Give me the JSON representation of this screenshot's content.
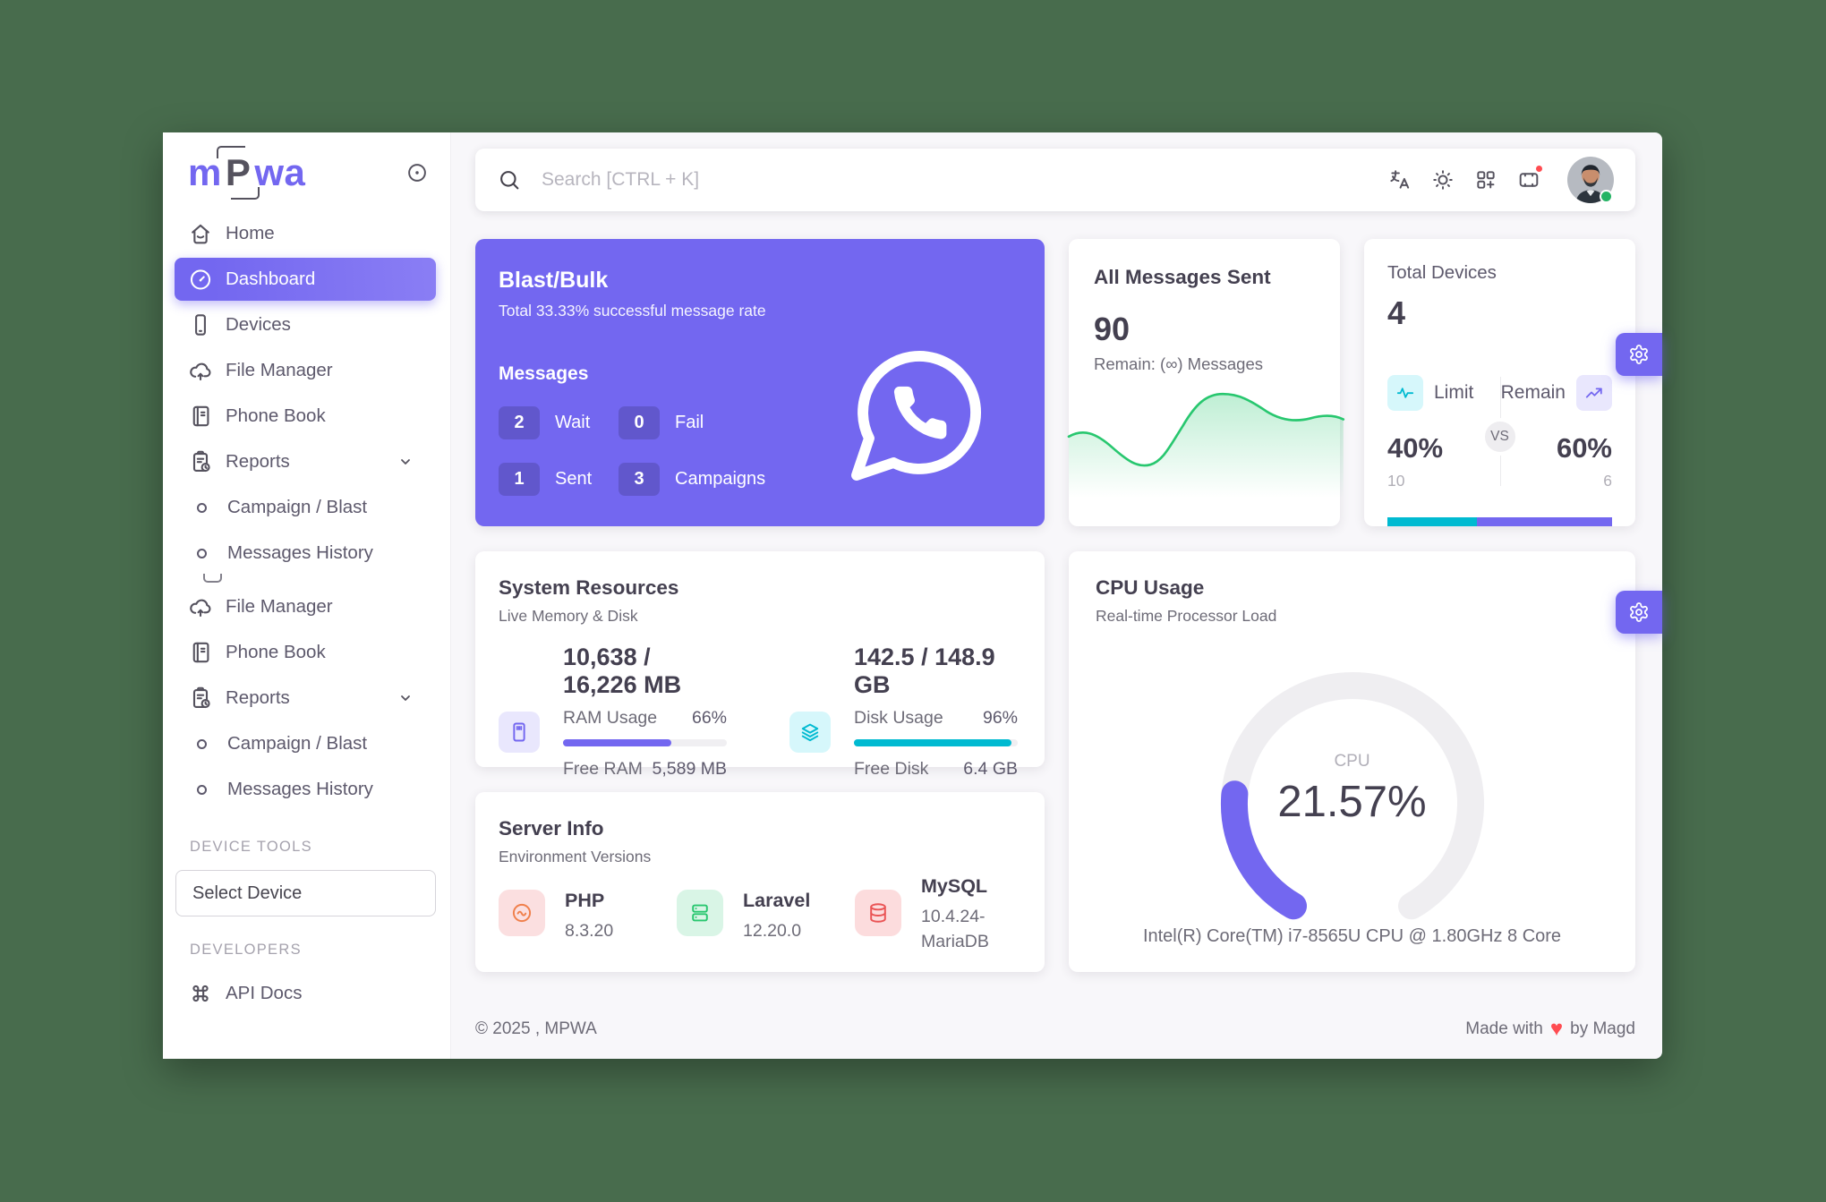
{
  "colors": {
    "purple": "#7367f0",
    "teal": "#00bad1",
    "green": "#28c76f",
    "red": "#ff4c51",
    "orange": "#ff9f43",
    "frame_bg": "#486c4d"
  },
  "sidebar": {
    "logo": {
      "left": "m",
      "mid": "P",
      "right": "wa"
    },
    "menu": [
      {
        "label": "Home",
        "icon": "home-icon"
      },
      {
        "label": "Dashboard",
        "icon": "gauge-icon",
        "active": true
      },
      {
        "label": "Devices",
        "icon": "smartphone-icon"
      },
      {
        "label": "File Manager",
        "icon": "cloud-upload-icon"
      },
      {
        "label": "Phone Book",
        "icon": "phonebook-icon"
      },
      {
        "label": "Reports",
        "icon": "report-icon",
        "chevron": true
      },
      {
        "label": "Campaign / Blast",
        "icon": "circle-icon"
      },
      {
        "label": "Messages History",
        "icon": "circle-icon"
      },
      {
        "label": "File Manager",
        "icon": "cloud-upload-icon"
      },
      {
        "label": "Phone Book",
        "icon": "phonebook-icon"
      },
      {
        "label": "Reports",
        "icon": "report-icon",
        "chevron": true
      },
      {
        "label": "Campaign / Blast",
        "icon": "circle-icon"
      },
      {
        "label": "Messages History",
        "icon": "circle-icon"
      }
    ],
    "device_tools_heading": "DEVICE TOOLS",
    "select_device": "Select Device",
    "developers_heading": "DEVELOPERS",
    "api_docs": "API Docs"
  },
  "header": {
    "search_placeholder": "Search [CTRL + K]"
  },
  "blast": {
    "title": "Blast/Bulk",
    "subtitle": "Total 33.33% successful message rate",
    "messages_label": "Messages",
    "stats": [
      {
        "value": "2",
        "label": "Wait"
      },
      {
        "value": "0",
        "label": "Fail"
      },
      {
        "value": "1",
        "label": "Sent"
      },
      {
        "value": "3",
        "label": "Campaigns"
      }
    ]
  },
  "all_messages": {
    "title": "All Messages Sent",
    "value": "90",
    "remain": "Remain: (∞) Messages"
  },
  "total_devices": {
    "title": "Total Devices",
    "value": "4",
    "limit_label": "Limit",
    "remain_label": "Remain",
    "vs_label": "VS",
    "limit_pct": "40%",
    "remain_pct": "60%",
    "limit_count": "10",
    "remain_count": "6",
    "limit_pct_num": 40,
    "remain_pct_num": 60
  },
  "system_resources": {
    "title": "System Resources",
    "subtitle": "Live Memory & Disk",
    "ram": {
      "headline": "10,638 / 16,226 MB",
      "usage_label": "RAM Usage",
      "usage_pct": "66%",
      "usage_pct_num": 66,
      "free_label": "Free RAM",
      "free_value": "5,589 MB"
    },
    "disk": {
      "headline": "142.5 / 148.9 GB",
      "usage_label": "Disk Usage",
      "usage_pct": "96%",
      "usage_pct_num": 96,
      "free_label": "Free Disk",
      "free_value": "6.4 GB"
    }
  },
  "cpu": {
    "title": "CPU Usage",
    "subtitle": "Real-time Processor Load",
    "gauge_label": "CPU",
    "value": "21.57%",
    "value_num": 21.57,
    "processor": "Intel(R) Core(TM) i7-8565U CPU @ 1.80GHz 8 Core"
  },
  "server_info": {
    "title": "Server Info",
    "subtitle": "Environment Versions",
    "items": [
      {
        "name": "PHP",
        "version": "8.3.20"
      },
      {
        "name": "Laravel",
        "version": "12.20.0"
      },
      {
        "name": "MySQL",
        "version": "10.4.24-MariaDB"
      }
    ]
  },
  "footer": {
    "copyright": "© 2025 , MPWA",
    "made_prefix": "Made with",
    "heart": "♥",
    "made_suffix": "by Magd"
  }
}
